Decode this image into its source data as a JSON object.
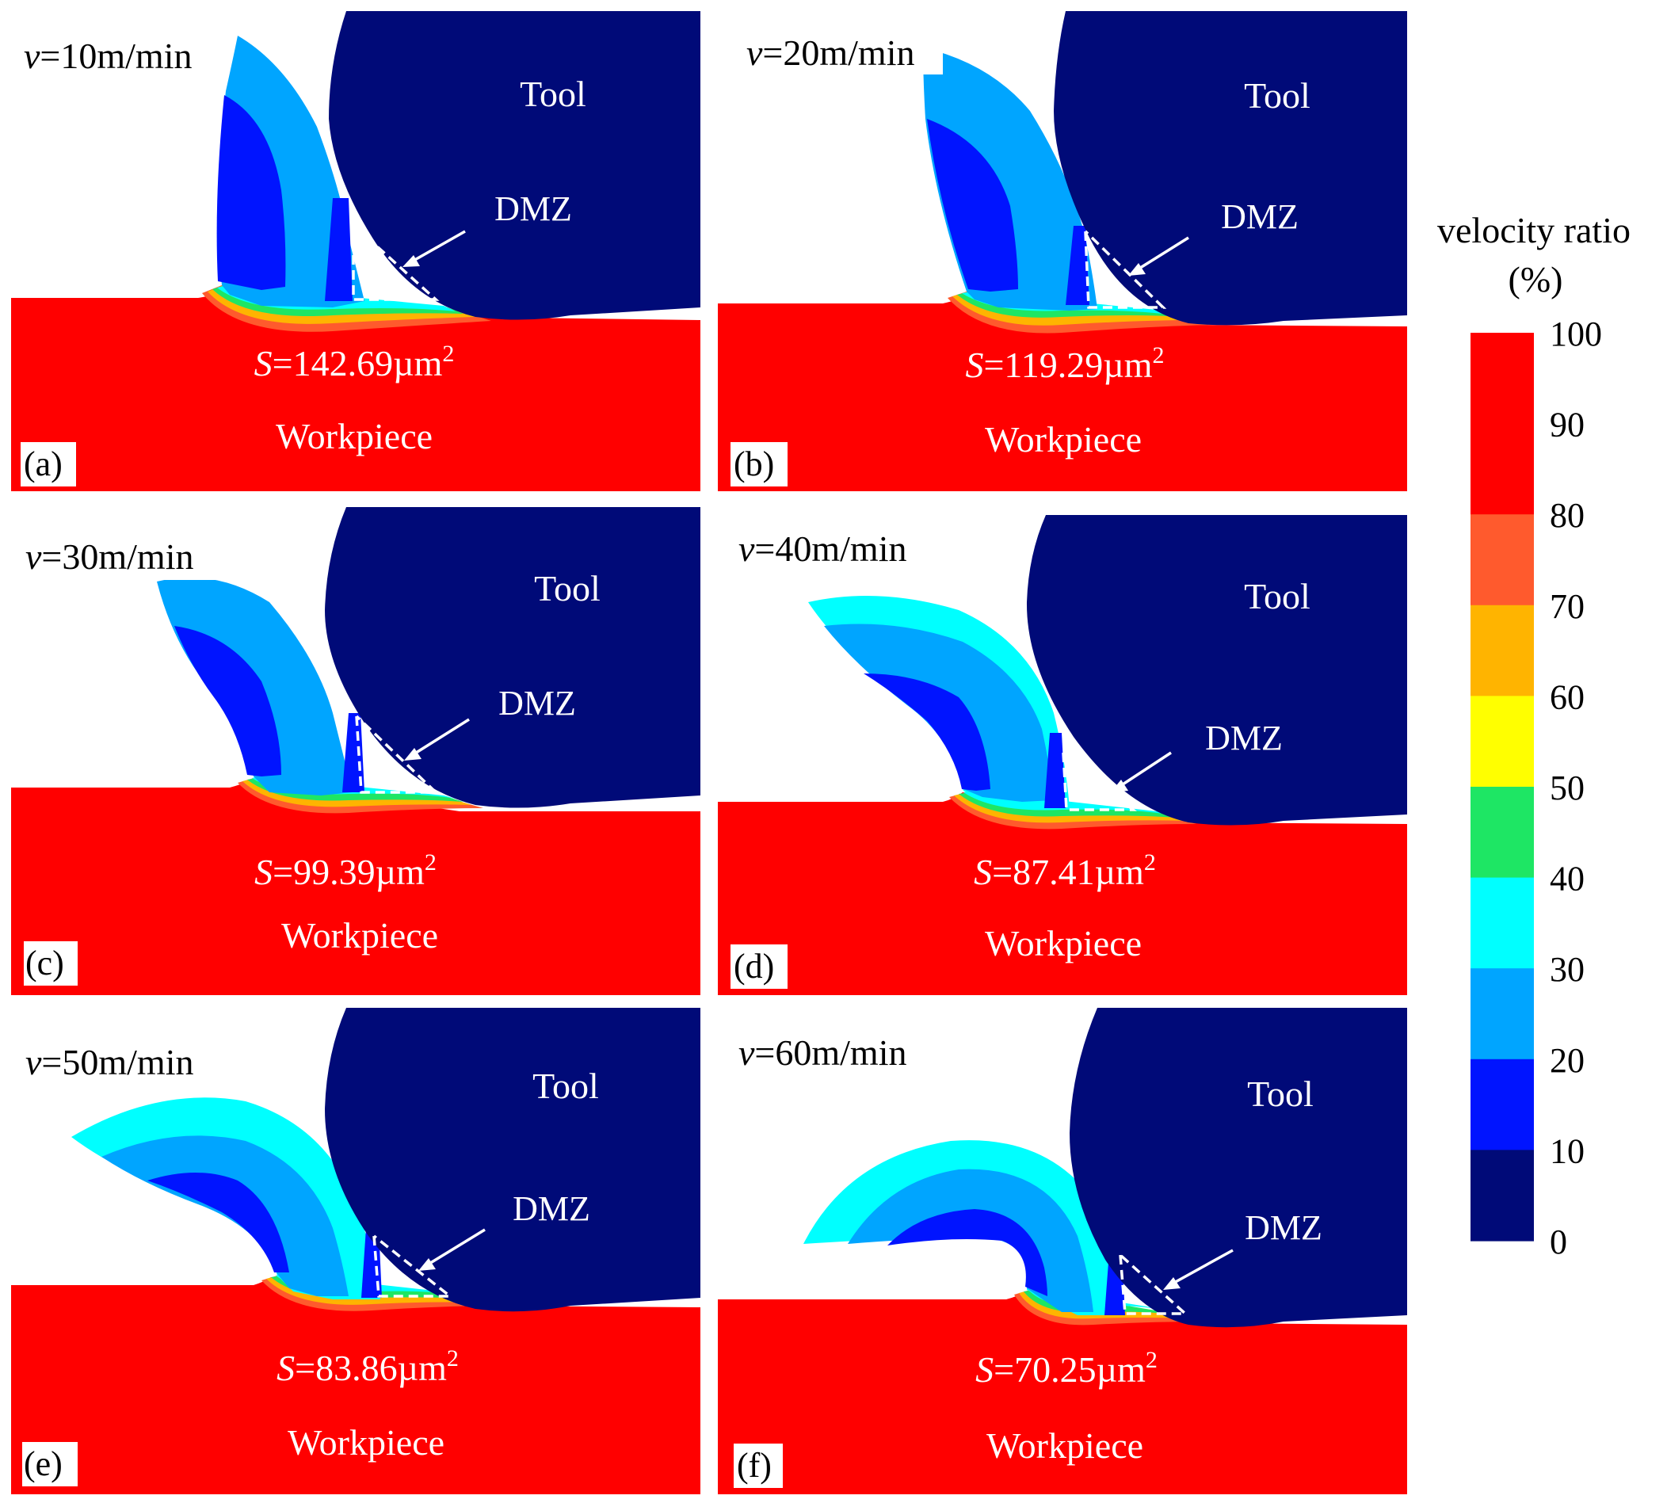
{
  "figure": {
    "panels": [
      {
        "id": "a",
        "label": "(a)",
        "velocity_symbol": "v",
        "velocity_text": "=10m/min",
        "area_symbol": "S",
        "area_text": "=142.69µm",
        "area_sup": "2",
        "tool_label": "Tool",
        "workpiece_label": "Workpiece",
        "dmz_label": "DMZ"
      },
      {
        "id": "b",
        "label": "(b)",
        "velocity_symbol": "v",
        "velocity_text": "=20m/min",
        "area_symbol": "S",
        "area_text": "=119.29µm",
        "area_sup": "2",
        "tool_label": "Tool",
        "workpiece_label": "Workpiece",
        "dmz_label": "DMZ"
      },
      {
        "id": "c",
        "label": "(c)",
        "velocity_symbol": "v",
        "velocity_text": "=30m/min",
        "area_symbol": "S",
        "area_text": "=99.39µm",
        "area_sup": "2",
        "tool_label": "Tool",
        "workpiece_label": "Workpiece",
        "dmz_label": "DMZ"
      },
      {
        "id": "d",
        "label": "(d)",
        "velocity_symbol": "v",
        "velocity_text": "=40m/min",
        "area_symbol": "S",
        "area_text": "=87.41µm",
        "area_sup": "2",
        "tool_label": "Tool",
        "workpiece_label": "Workpiece",
        "dmz_label": "DMZ"
      },
      {
        "id": "e",
        "label": "(e)",
        "velocity_symbol": "v",
        "velocity_text": "=50m/min",
        "area_symbol": "S",
        "area_text": "=83.86µm",
        "area_sup": "2",
        "tool_label": "Tool",
        "workpiece_label": "Workpiece",
        "dmz_label": "DMZ"
      },
      {
        "id": "f",
        "label": "(f)",
        "velocity_symbol": "v",
        "velocity_text": "=60m/min",
        "area_symbol": "S",
        "area_text": "=70.25µm",
        "area_sup": "2",
        "tool_label": "Tool",
        "workpiece_label": "Workpiece",
        "dmz_label": "DMZ"
      }
    ],
    "colorbar": {
      "title_line1": "velocity  ratio",
      "title_line2": "(%)",
      "ticks": [
        "100",
        "90",
        "80",
        "70",
        "60",
        "50",
        "40",
        "30",
        "20",
        "10",
        "0"
      ],
      "band_colors_top_to_bottom": [
        "#ff0000",
        "#ff0000",
        "#ff5a2d",
        "#ffb400",
        "#ffff00",
        "#1ee664",
        "#00ffff",
        "#00a5ff",
        "#0014ff",
        "#000a78"
      ]
    },
    "colors": {
      "workpiece": "#ff0000",
      "tool": "#000a78",
      "chip_outer_low_speed": "#00a5ff",
      "chip_outer_high_speed": "#00ffff",
      "chip_mid": "#00a5ff",
      "chip_inner": "#0014ff",
      "dmz_dash": "#ffffff",
      "arrow": "#ffffff"
    }
  }
}
